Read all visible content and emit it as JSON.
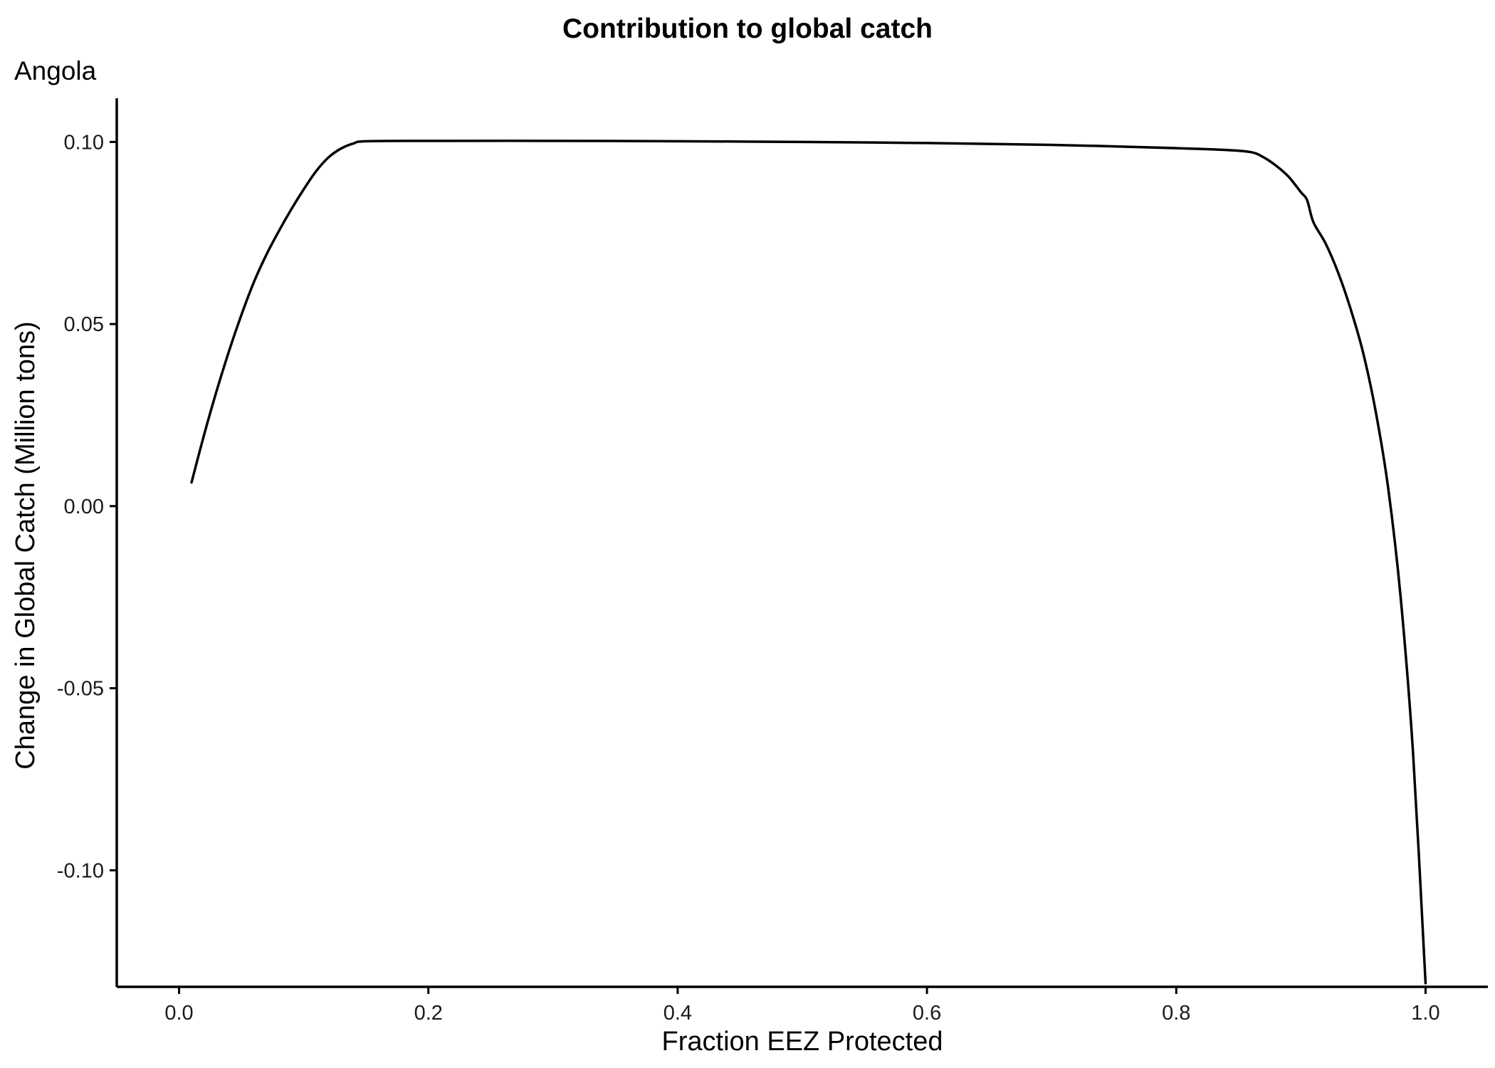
{
  "chart_data": {
    "type": "line",
    "title": "Contribution to global catch",
    "subtitle": "Angola",
    "xlabel": "Fraction EEZ Protected",
    "ylabel": "Change in Global Catch (Million tons)",
    "xlim": [
      -0.05,
      1.05
    ],
    "ylim": [
      -0.132,
      0.112
    ],
    "x_ticks": [
      0.0,
      0.2,
      0.4,
      0.6,
      0.8,
      1.0
    ],
    "x_tick_labels": [
      "0.0",
      "0.2",
      "0.4",
      "0.6",
      "0.8",
      "1.0"
    ],
    "y_ticks": [
      -0.1,
      -0.05,
      0.0,
      0.05,
      0.1
    ],
    "y_tick_labels": [
      "-0.10",
      "-0.05",
      "0.00",
      "0.05",
      "0.10"
    ],
    "grid": false,
    "legend": "none",
    "line_color": "#000000",
    "series": [
      {
        "points": [
          [
            0.01,
            0.0065
          ],
          [
            0.02,
            0.0195
          ],
          [
            0.03,
            0.0315
          ],
          [
            0.04,
            0.0425
          ],
          [
            0.05,
            0.0525
          ],
          [
            0.06,
            0.0615
          ],
          [
            0.07,
            0.069
          ],
          [
            0.08,
            0.0755
          ],
          [
            0.09,
            0.0815
          ],
          [
            0.1,
            0.087
          ],
          [
            0.11,
            0.092
          ],
          [
            0.12,
            0.0958
          ],
          [
            0.13,
            0.0982
          ],
          [
            0.14,
            0.0996
          ],
          [
            0.15,
            0.1002
          ],
          [
            0.2,
            0.1003
          ],
          [
            0.3,
            0.1003
          ],
          [
            0.4,
            0.1002
          ],
          [
            0.5,
            0.1
          ],
          [
            0.6,
            0.0997
          ],
          [
            0.7,
            0.0992
          ],
          [
            0.8,
            0.0983
          ],
          [
            0.84,
            0.0978
          ],
          [
            0.86,
            0.0972
          ],
          [
            0.87,
            0.0958
          ],
          [
            0.88,
            0.0935
          ],
          [
            0.89,
            0.0905
          ],
          [
            0.9,
            0.0862
          ],
          [
            0.905,
            0.084
          ],
          [
            0.91,
            0.078
          ],
          [
            0.92,
            0.072
          ],
          [
            0.93,
            0.064
          ],
          [
            0.94,
            0.054
          ],
          [
            0.95,
            0.042
          ],
          [
            0.96,
            0.026
          ],
          [
            0.97,
            0.005
          ],
          [
            0.98,
            -0.025
          ],
          [
            0.99,
            -0.068
          ],
          [
            1.0,
            -0.131
          ]
        ]
      }
    ]
  }
}
